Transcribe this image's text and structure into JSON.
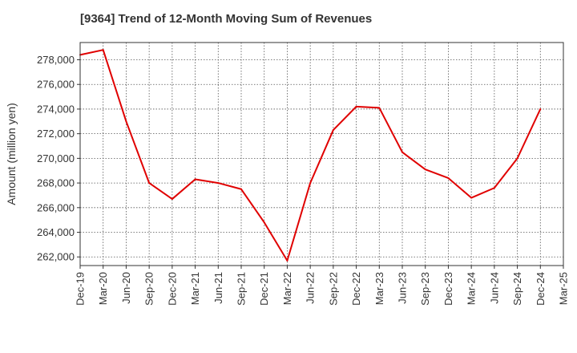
{
  "chart_data": {
    "type": "line",
    "title": "[9364]  Trend of 12-Month Moving Sum of Revenues",
    "xlabel": "",
    "ylabel": "Amount (million yen)",
    "ylim": [
      261300,
      279400
    ],
    "yticks": [
      262000,
      264000,
      266000,
      268000,
      270000,
      272000,
      274000,
      276000,
      278000
    ],
    "ytick_labels": [
      "262,000",
      "264,000",
      "266,000",
      "268,000",
      "270,000",
      "272,000",
      "274,000",
      "276,000",
      "278,000"
    ],
    "x_categories": [
      "Dec-19",
      "Mar-20",
      "Jun-20",
      "Sep-20",
      "Dec-20",
      "Mar-21",
      "Jun-21",
      "Sep-21",
      "Dec-21",
      "Mar-22",
      "Jun-22",
      "Sep-22",
      "Dec-22",
      "Mar-23",
      "Jun-23",
      "Sep-23",
      "Dec-23",
      "Mar-24",
      "Jun-24",
      "Sep-24",
      "Dec-24",
      "Mar-25"
    ],
    "grid": true,
    "series": [
      {
        "color": "#e00000",
        "x": [
          "Dec-19",
          "Mar-20",
          "Jun-20",
          "Sep-20",
          "Dec-20",
          "Mar-21",
          "Jun-21",
          "Sep-21",
          "Dec-21",
          "Mar-22",
          "Jun-22",
          "Sep-22",
          "Dec-22",
          "Mar-23",
          "Jun-23",
          "Sep-23",
          "Dec-23",
          "Mar-24",
          "Jun-24",
          "Sep-24",
          "Dec-24"
        ],
        "values": [
          278400,
          278800,
          273000,
          268000,
          266700,
          268300,
          268000,
          267500,
          264800,
          261700,
          268000,
          272300,
          274200,
          274100,
          270500,
          269100,
          268400,
          266800,
          267600,
          270000,
          274000
        ]
      }
    ]
  }
}
